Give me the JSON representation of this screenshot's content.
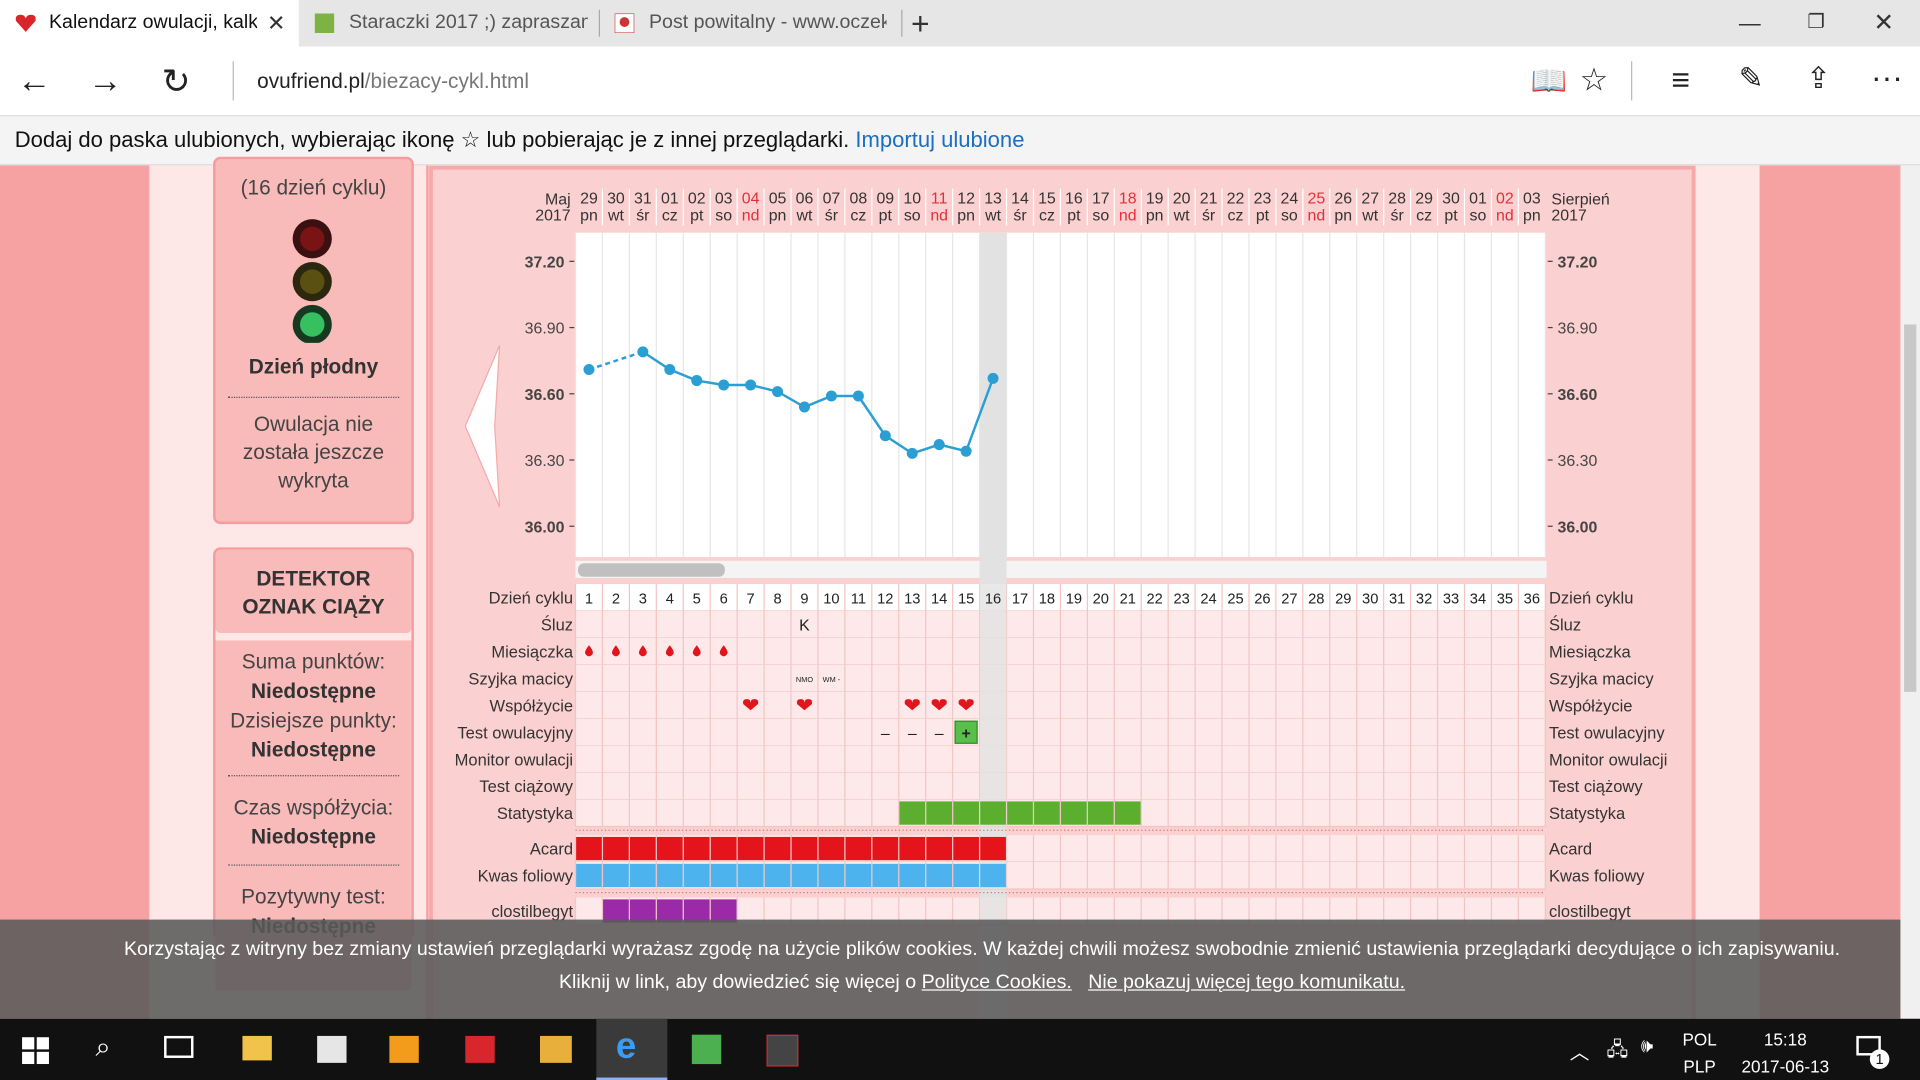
{
  "browser": {
    "tabs": [
      "Kalendarz owulacji, kalk",
      "Staraczki 2017 ;) zapraszam",
      "Post powitalny - www.oczek"
    ],
    "address_domain": "ovufriend.pl",
    "address_path": "/biezacy-cykl.html"
  },
  "favorites_bar": {
    "text": "Dodaj do paska ulubionych, wybierając ikonę ☆ lub pobierając je z innej przeglądarki.",
    "link": "Importuj ulubione"
  },
  "sidebar": {
    "cycle_day": "(16 dzień cyklu)",
    "status": "Dzień płodny",
    "ovulation": "Owulacja nie została jeszcze wykryta",
    "detector_title": "DETEKTOR OZNAK CIĄŻY",
    "items": [
      {
        "label": "Suma punktów:",
        "value": "Niedostępne"
      },
      {
        "label": "Dzisiejsze punkty:",
        "value": "Niedostępne"
      },
      {
        "label": "Czas współżycia:",
        "value": "Niedostępne"
      },
      {
        "label": "Pozytywny test:",
        "value": "Niedostępne"
      }
    ]
  },
  "chart_data": {
    "type": "line",
    "start_month": "Maj",
    "start_year": "2017",
    "end_month": "Sierpień",
    "end_year": "2017",
    "dates": [
      {
        "day": "29",
        "weekday": "pn"
      },
      {
        "day": "30",
        "weekday": "wt"
      },
      {
        "day": "31",
        "weekday": "śr"
      },
      {
        "day": "01",
        "weekday": "cz"
      },
      {
        "day": "02",
        "weekday": "pt"
      },
      {
        "day": "03",
        "weekday": "so"
      },
      {
        "day": "04",
        "weekday": "nd",
        "red": true
      },
      {
        "day": "05",
        "weekday": "pn"
      },
      {
        "day": "06",
        "weekday": "wt"
      },
      {
        "day": "07",
        "weekday": "śr"
      },
      {
        "day": "08",
        "weekday": "cz"
      },
      {
        "day": "09",
        "weekday": "pt"
      },
      {
        "day": "10",
        "weekday": "so"
      },
      {
        "day": "11",
        "weekday": "nd",
        "red": true
      },
      {
        "day": "12",
        "weekday": "pn"
      },
      {
        "day": "13",
        "weekday": "wt"
      },
      {
        "day": "14",
        "weekday": "śr"
      },
      {
        "day": "15",
        "weekday": "cz"
      },
      {
        "day": "16",
        "weekday": "pt"
      },
      {
        "day": "17",
        "weekday": "so"
      },
      {
        "day": "18",
        "weekday": "nd",
        "red": true
      },
      {
        "day": "19",
        "weekday": "pn"
      },
      {
        "day": "20",
        "weekday": "wt"
      },
      {
        "day": "21",
        "weekday": "śr"
      },
      {
        "day": "22",
        "weekday": "cz"
      },
      {
        "day": "23",
        "weekday": "pt"
      },
      {
        "day": "24",
        "weekday": "so"
      },
      {
        "day": "25",
        "weekday": "nd",
        "red": true
      },
      {
        "day": "26",
        "weekday": "pn"
      },
      {
        "day": "27",
        "weekday": "wt"
      },
      {
        "day": "28",
        "weekday": "śr"
      },
      {
        "day": "29",
        "weekday": "cz"
      },
      {
        "day": "30",
        "weekday": "pt"
      },
      {
        "day": "01",
        "weekday": "so"
      },
      {
        "day": "02",
        "weekday": "nd",
        "red": true
      },
      {
        "day": "03",
        "weekday": "pn"
      }
    ],
    "x": [
      1,
      2,
      3,
      4,
      5,
      6,
      7,
      8,
      9,
      10,
      11,
      12,
      13,
      14,
      15,
      16,
      17,
      18,
      19,
      20,
      21,
      22,
      23,
      24,
      25,
      26,
      27,
      28,
      29,
      30,
      31,
      32,
      33,
      34,
      35,
      36
    ],
    "series": [
      {
        "color": "#2b9fd4",
        "values": [
          36.71,
          null,
          36.79,
          36.71,
          36.66,
          36.64,
          36.64,
          36.61,
          36.54,
          36.59,
          36.59,
          36.41,
          36.33,
          36.37,
          36.34,
          36.67,
          null,
          null,
          null,
          null,
          null,
          null,
          null,
          null,
          null,
          null,
          null,
          null,
          null,
          null,
          null,
          null,
          null,
          null,
          null,
          null
        ]
      }
    ],
    "ylim": [
      35.86,
      37.33
    ],
    "yticks": [
      {
        "value": 36.0,
        "label": "36.00"
      },
      {
        "value": 36.3,
        "label": "36.30"
      },
      {
        "value": 36.6,
        "label": "36.60"
      },
      {
        "value": 36.9,
        "label": "36.90"
      },
      {
        "value": 37.2,
        "label": "37.20"
      }
    ],
    "today": 16,
    "rows": [
      {
        "label": "Dzień cyklu"
      },
      {
        "label": "Śluz",
        "entries": [
          {
            "day": 9,
            "text": "K"
          }
        ]
      },
      {
        "label": "Miesiączka",
        "icon": "drop",
        "days": [
          1,
          2,
          3,
          4,
          5,
          6
        ]
      },
      {
        "label": "Szyjka macicy",
        "entries": [
          {
            "day": 9,
            "text": "NMO",
            "small": true
          },
          {
            "day": 10,
            "text": "WM -",
            "small": true
          }
        ]
      },
      {
        "label": "Współżycie",
        "icon": "heart",
        "days": [
          7,
          9,
          13,
          14,
          15
        ]
      },
      {
        "label": "Test owulacyjny",
        "entries": [
          {
            "day": 12,
            "text": "–"
          },
          {
            "day": 13,
            "text": "–"
          },
          {
            "day": 14,
            "text": "–"
          },
          {
            "day": 15,
            "text": "+",
            "positive": true
          }
        ]
      },
      {
        "label": "Monitor owulacji"
      },
      {
        "label": "Test ciążowy"
      },
      {
        "label": "Statystyka",
        "icon": "block",
        "color": "#5cae2e",
        "days": [
          13,
          14,
          15,
          16,
          17,
          18,
          19,
          20,
          21
        ]
      },
      {
        "label": "Acard",
        "icon": "block",
        "color": "#e5141c",
        "days": [
          1,
          2,
          3,
          4,
          5,
          6,
          7,
          8,
          9,
          10,
          11,
          12,
          13,
          14,
          15,
          16
        ],
        "group_start": true
      },
      {
        "label": "Kwas foliowy",
        "icon": "block",
        "color": "#4db3ee",
        "days": [
          1,
          2,
          3,
          4,
          5,
          6,
          7,
          8,
          9,
          10,
          11,
          12,
          13,
          14,
          15,
          16
        ]
      },
      {
        "label": "clostilbegyt",
        "icon": "block",
        "color": "#9b2aa8",
        "days": [
          2,
          3,
          4,
          5,
          6
        ],
        "group_start": true
      }
    ]
  },
  "cookie": {
    "text": "Korzystając z witryny bez zmiany ustawień przeglądarki wyrażasz zgodę na użycie plików cookies. W każdej chwili możesz swobodnie zmienić ustawienia przeglądarki decydujące o ich zapisywaniu.",
    "line2": "Kliknij w link, aby dowiedzieć się więcej o",
    "policy_link": "Polityce Cookies.",
    "dismiss_link": "Nie pokazuj więcej tego komunikatu."
  },
  "taskbar": {
    "lang": "POL",
    "layout": "PLP",
    "time": "15:18",
    "date": "2017-06-13",
    "notifications": "1"
  }
}
